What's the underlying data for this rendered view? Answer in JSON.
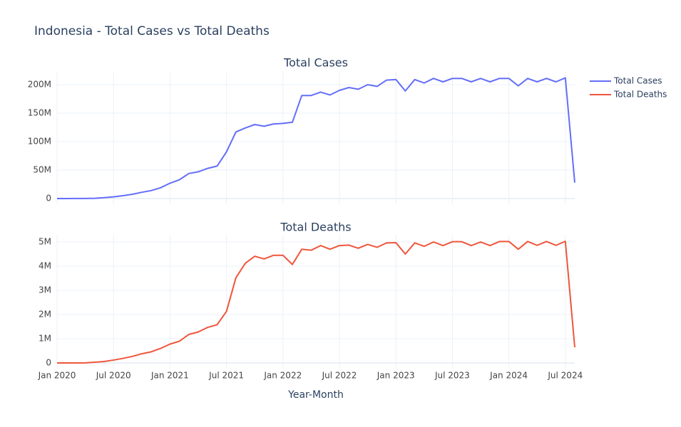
{
  "title": "Indonesia - Total Cases vs Total Deaths",
  "chart_data": [
    {
      "type": "line",
      "title": "Total Cases",
      "x": [
        "2020-01",
        "2020-02",
        "2020-03",
        "2020-04",
        "2020-05",
        "2020-06",
        "2020-07",
        "2020-08",
        "2020-09",
        "2020-10",
        "2020-11",
        "2020-12",
        "2021-01",
        "2021-02",
        "2021-03",
        "2021-04",
        "2021-05",
        "2021-06",
        "2021-07",
        "2021-08",
        "2021-09",
        "2021-10",
        "2021-11",
        "2021-12",
        "2022-01",
        "2022-02",
        "2022-03",
        "2022-04",
        "2022-05",
        "2022-06",
        "2022-07",
        "2022-08",
        "2022-09",
        "2022-10",
        "2022-11",
        "2022-12",
        "2023-01",
        "2023-02",
        "2023-03",
        "2023-04",
        "2023-05",
        "2023-06",
        "2023-07",
        "2023-08",
        "2023-09",
        "2023-10",
        "2023-11",
        "2023-12",
        "2024-01",
        "2024-02",
        "2024-03",
        "2024-04",
        "2024-05",
        "2024-06",
        "2024-07",
        "2024-08"
      ],
      "series": [
        {
          "name": "Total Cases",
          "color": "#636efa",
          "values": [
            0,
            0,
            100000,
            200000,
            500000,
            1500000,
            3000000,
            5000000,
            7500000,
            11000000,
            14000000,
            19000000,
            27000000,
            33000000,
            44000000,
            47000000,
            53000000,
            57000000,
            82000000,
            117000000,
            124000000,
            130000000,
            127000000,
            131000000,
            132000000,
            134000000,
            181000000,
            181000000,
            187000000,
            182000000,
            190000000,
            195000000,
            192000000,
            200000000,
            197000000,
            208000000,
            209000000,
            189000000,
            209000000,
            203000000,
            211000000,
            205000000,
            211000000,
            211000000,
            205000000,
            211000000,
            205000000,
            211000000,
            211000000,
            198000000,
            211000000,
            205000000,
            211000000,
            205000000,
            212000000,
            28000000
          ]
        }
      ],
      "xlim": [
        "2020-01",
        "2024-08"
      ],
      "xticks": [
        "2020-01",
        "2020-07",
        "2021-01",
        "2021-07",
        "2022-01",
        "2022-07",
        "2023-01",
        "2023-07",
        "2024-01",
        "2024-07"
      ],
      "ylim": [
        -10000000,
        223750000
      ],
      "yticks": [
        {
          "value": 0,
          "label": "0"
        },
        {
          "value": 50000000,
          "label": "50M"
        },
        {
          "value": 100000000,
          "label": "100M"
        },
        {
          "value": 150000000,
          "label": "150M"
        },
        {
          "value": 200000000,
          "label": "200M"
        }
      ],
      "grid": true
    },
    {
      "type": "line",
      "title": "Total Deaths",
      "xlabel": "Year-Month",
      "x": [
        "2020-01",
        "2020-02",
        "2020-03",
        "2020-04",
        "2020-05",
        "2020-06",
        "2020-07",
        "2020-08",
        "2020-09",
        "2020-10",
        "2020-11",
        "2020-12",
        "2021-01",
        "2021-02",
        "2021-03",
        "2021-04",
        "2021-05",
        "2021-06",
        "2021-07",
        "2021-08",
        "2021-09",
        "2021-10",
        "2021-11",
        "2021-12",
        "2022-01",
        "2022-02",
        "2022-03",
        "2022-04",
        "2022-05",
        "2022-06",
        "2022-07",
        "2022-08",
        "2022-09",
        "2022-10",
        "2022-11",
        "2022-12",
        "2023-01",
        "2023-02",
        "2023-03",
        "2023-04",
        "2023-05",
        "2023-06",
        "2023-07",
        "2023-08",
        "2023-09",
        "2023-10",
        "2023-11",
        "2023-12",
        "2024-01",
        "2024-02",
        "2024-03",
        "2024-04",
        "2024-05",
        "2024-06",
        "2024-07",
        "2024-08"
      ],
      "series": [
        {
          "name": "Total Deaths",
          "color": "#ef553b",
          "values": [
            0,
            0,
            1000,
            5000,
            30000,
            60000,
            120000,
            190000,
            270000,
            380000,
            460000,
            600000,
            780000,
            900000,
            1180000,
            1280000,
            1470000,
            1580000,
            2130000,
            3520000,
            4120000,
            4410000,
            4300000,
            4450000,
            4450000,
            4070000,
            4700000,
            4660000,
            4850000,
            4700000,
            4850000,
            4870000,
            4740000,
            4900000,
            4780000,
            4960000,
            4970000,
            4500000,
            4960000,
            4820000,
            5000000,
            4850000,
            5010000,
            5010000,
            4850000,
            5000000,
            4850000,
            5020000,
            5020000,
            4700000,
            5020000,
            4860000,
            5020000,
            4860000,
            5030000,
            650000
          ]
        }
      ],
      "xlim": [
        "2020-01",
        "2024-08"
      ],
      "xticks": [
        {
          "value": "2020-01",
          "label": "Jan 2020"
        },
        {
          "value": "2020-07",
          "label": "Jul 2020"
        },
        {
          "value": "2021-01",
          "label": "Jan 2021"
        },
        {
          "value": "2021-07",
          "label": "Jul 2021"
        },
        {
          "value": "2022-01",
          "label": "Jan 2022"
        },
        {
          "value": "2022-07",
          "label": "Jul 2022"
        },
        {
          "value": "2023-01",
          "label": "Jan 2023"
        },
        {
          "value": "2023-07",
          "label": "Jul 2023"
        },
        {
          "value": "2024-01",
          "label": "Jan 2024"
        },
        {
          "value": "2024-07",
          "label": "Jul 2024"
        }
      ],
      "ylim": [
        -235000,
        5294000
      ],
      "yticks": [
        {
          "value": 0,
          "label": "0"
        },
        {
          "value": 1000000,
          "label": "1M"
        },
        {
          "value": 2000000,
          "label": "2M"
        },
        {
          "value": 3000000,
          "label": "3M"
        },
        {
          "value": 4000000,
          "label": "4M"
        },
        {
          "value": 5000000,
          "label": "5M"
        }
      ],
      "grid": true
    }
  ]
}
